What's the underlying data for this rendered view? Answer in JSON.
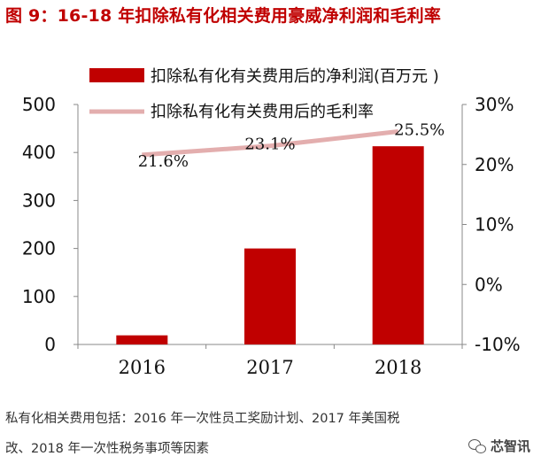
{
  "figure": {
    "title": "图 9：16-18 年扣除私有化相关费用豪威净利润和毛利率",
    "note_line1": "私有化相关费用包括：2016 年一次性员工奖励计划、2017 年美国税",
    "note_line2": "改、2018 年一次性税务事项等因素",
    "watermark": "芯智讯",
    "watermark_icon": "wechat-icon"
  },
  "chart_data": {
    "type": "bar",
    "categories": [
      "2016",
      "2017",
      "2018"
    ],
    "series": [
      {
        "name": "扣除私有化有关费用后的净利润(百万元 )",
        "type": "bar",
        "axis": "left",
        "values": [
          19,
          200,
          413
        ],
        "color": "#c00000"
      },
      {
        "name": "扣除私有化有关费用后的毛利率",
        "type": "line",
        "axis": "right",
        "values": [
          21.6,
          23.1,
          25.5
        ],
        "labels": [
          "21.6%",
          "23.1%",
          "25.5%"
        ],
        "color": "#e3aeae"
      }
    ],
    "y_left": {
      "ticks": [
        "0",
        "100",
        "200",
        "300",
        "400",
        "500"
      ],
      "range": [
        0,
        500
      ]
    },
    "y_right": {
      "ticks": [
        "-10%",
        "0%",
        "10%",
        "20%",
        "30%"
      ],
      "range": [
        -10,
        30
      ]
    },
    "grid": false,
    "legend": "top"
  }
}
